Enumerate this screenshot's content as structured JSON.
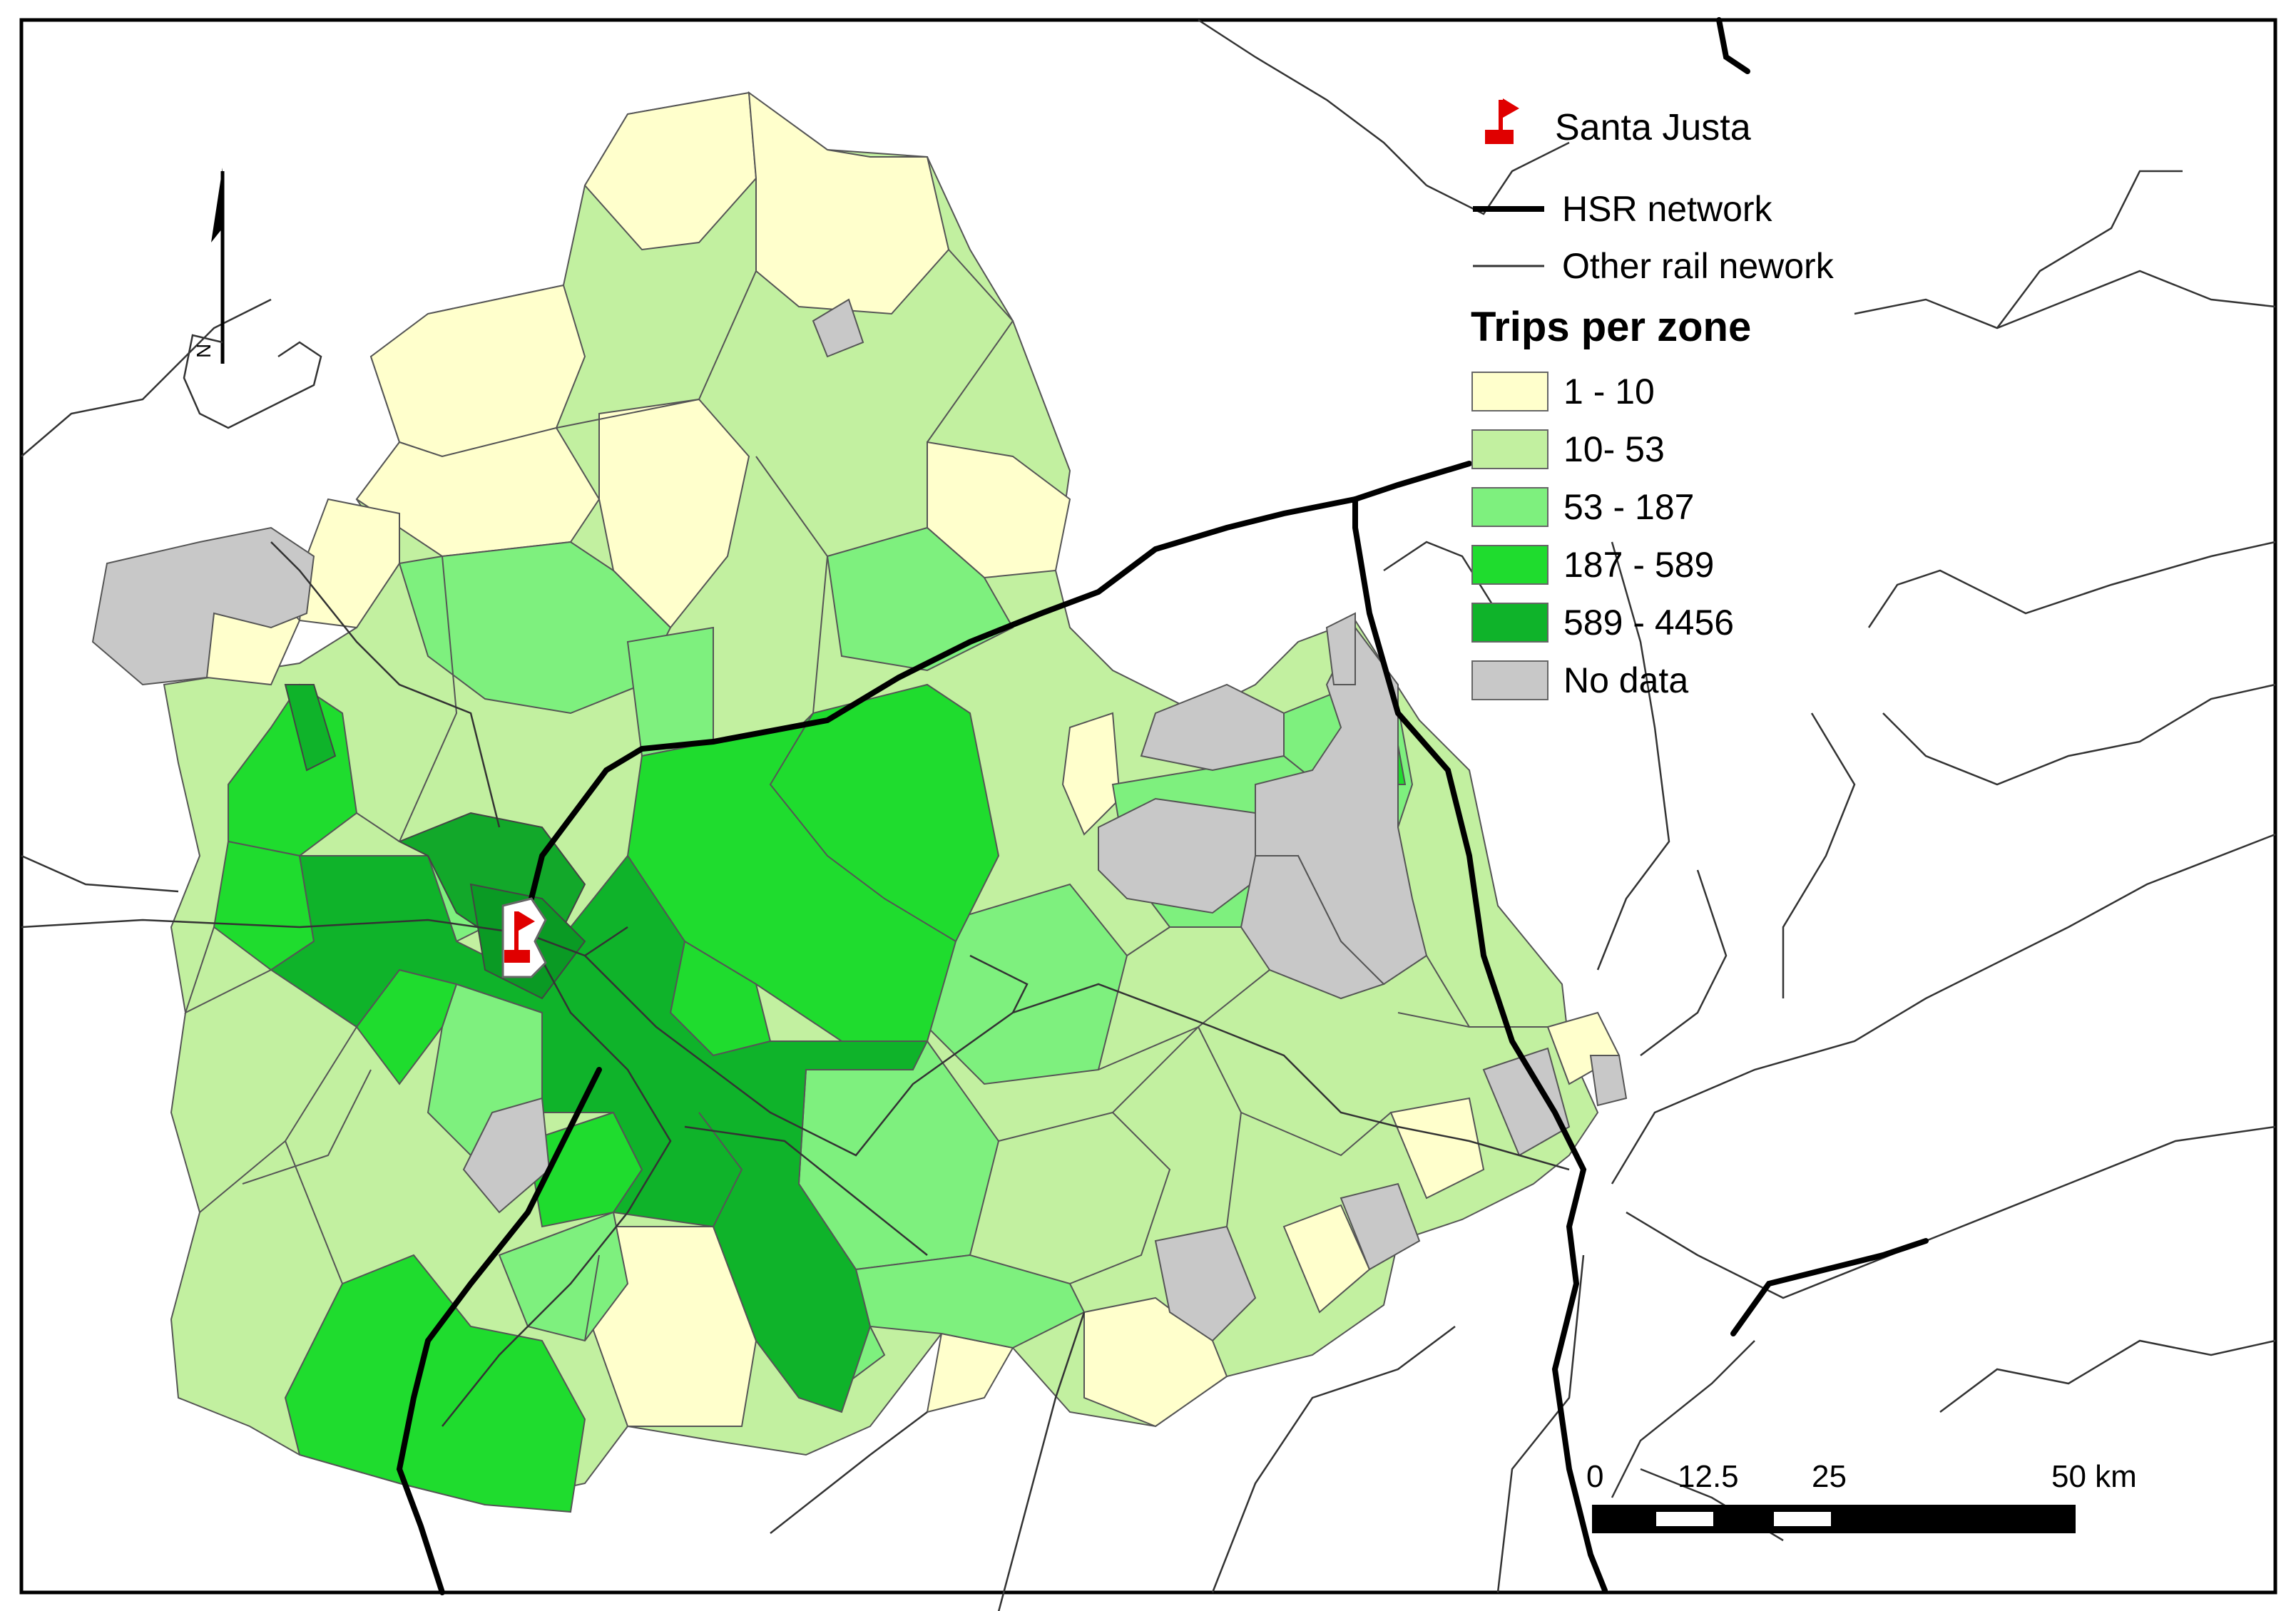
{
  "legend": {
    "station_label": "Santa Justa",
    "hsr_label": "HSR network",
    "other_rail_label": "Other rail nework",
    "title": "Trips per zone",
    "classes": [
      {
        "label": "1 - 10",
        "color": "#ffffcc"
      },
      {
        "label": "10- 53",
        "color": "#c2f0a0"
      },
      {
        "label": "53 - 187",
        "color": "#7ef07e"
      },
      {
        "label": "187 - 589",
        "color": "#1fdc2e"
      },
      {
        "label": "589 - 4456",
        "color": "#0fb32a"
      },
      {
        "label": "No data",
        "color": "#c8c8c8"
      }
    ]
  },
  "scale_bar": {
    "ticks": [
      "0",
      "12.5",
      "25",
      "50 km"
    ]
  },
  "north_arrow": {
    "label": "N"
  },
  "icons": {
    "station": "red-flag-icon",
    "north": "north-arrow-icon"
  }
}
